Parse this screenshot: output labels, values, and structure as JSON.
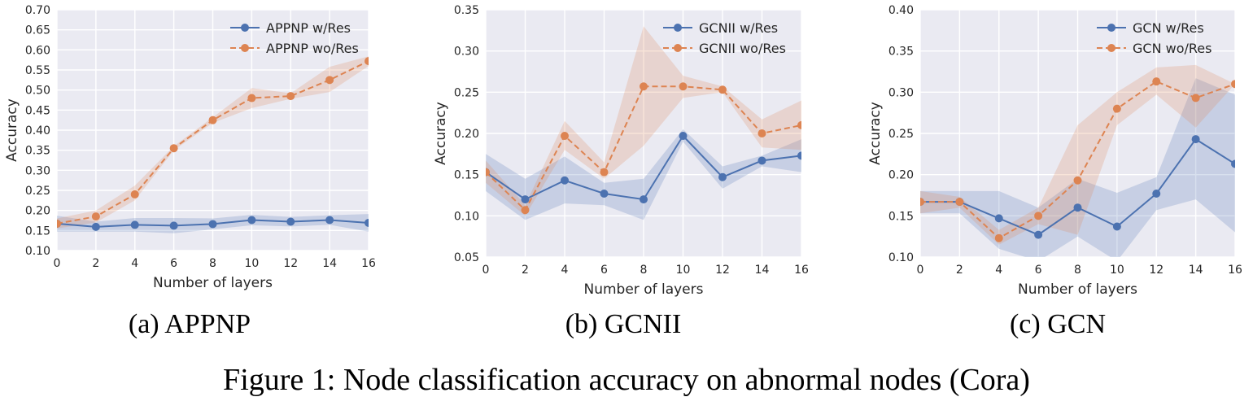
{
  "figure_caption": "Figure 1: Node classification accuracy on abnormal nodes (Cora)",
  "colors": {
    "res": "#4c72b0",
    "wores": "#dd8452",
    "plot_bg": "#eaeaf2",
    "grid": "#ffffff"
  },
  "chart_data": [
    {
      "type": "line",
      "subcaption": "(a) APPNP",
      "xlabel": "Number of layers",
      "ylabel": "Accuracy",
      "x": [
        0,
        2,
        4,
        6,
        8,
        10,
        12,
        14,
        16
      ],
      "xticks": [
        "0",
        "2",
        "4",
        "6",
        "8",
        "10",
        "12",
        "14",
        "16"
      ],
      "xlim": [
        0,
        16
      ],
      "ylim": [
        0.1,
        0.7
      ],
      "yticks": [
        "0.10",
        "0.15",
        "0.20",
        "0.25",
        "0.30",
        "0.35",
        "0.40",
        "0.45",
        "0.50",
        "0.55",
        "0.60",
        "0.65",
        "0.70"
      ],
      "legend_position": "top-right",
      "grid": true,
      "series": [
        {
          "name": "APPNP w/Res",
          "style": "solid",
          "color": "#4c72b0",
          "values": [
            0.167,
            0.159,
            0.164,
            0.162,
            0.166,
            0.176,
            0.172,
            0.176,
            0.169
          ],
          "lower": [
            0.147,
            0.147,
            0.147,
            0.143,
            0.153,
            0.163,
            0.16,
            0.164,
            0.147
          ],
          "upper": [
            0.187,
            0.172,
            0.181,
            0.181,
            0.18,
            0.189,
            0.184,
            0.188,
            0.191
          ]
        },
        {
          "name": "APPNP wo/Res",
          "style": "dashed",
          "color": "#dd8452",
          "values": [
            0.167,
            0.185,
            0.24,
            0.355,
            0.425,
            0.48,
            0.485,
            0.525,
            0.572
          ],
          "lower": [
            0.155,
            0.17,
            0.225,
            0.35,
            0.418,
            0.455,
            0.478,
            0.495,
            0.56
          ],
          "upper": [
            0.18,
            0.2,
            0.262,
            0.36,
            0.432,
            0.505,
            0.492,
            0.558,
            0.584
          ]
        }
      ]
    },
    {
      "type": "line",
      "subcaption": "(b) GCNII",
      "xlabel": "Number of layers",
      "ylabel": "Accuracy",
      "x": [
        0,
        2,
        4,
        6,
        8,
        10,
        12,
        14,
        16
      ],
      "xticks": [
        "0",
        "2",
        "4",
        "6",
        "8",
        "10",
        "12",
        "14",
        "16"
      ],
      "xlim": [
        0,
        16
      ],
      "ylim": [
        0.05,
        0.35
      ],
      "yticks": [
        "0.05",
        "0.10",
        "0.15",
        "0.20",
        "0.25",
        "0.30",
        "0.35"
      ],
      "legend_position": "top-right",
      "grid": true,
      "series": [
        {
          "name": "GCNII w/Res",
          "style": "solid",
          "color": "#4c72b0",
          "values": [
            0.153,
            0.12,
            0.143,
            0.127,
            0.12,
            0.197,
            0.147,
            0.167,
            0.173
          ],
          "lower": [
            0.13,
            0.095,
            0.115,
            0.113,
            0.095,
            0.19,
            0.133,
            0.16,
            0.153
          ],
          "upper": [
            0.175,
            0.145,
            0.172,
            0.14,
            0.145,
            0.205,
            0.16,
            0.173,
            0.193
          ]
        },
        {
          "name": "GCNII wo/Res",
          "style": "dashed",
          "color": "#dd8452",
          "values": [
            0.153,
            0.107,
            0.197,
            0.153,
            0.257,
            0.257,
            0.253,
            0.2,
            0.21
          ],
          "lower": [
            0.14,
            0.1,
            0.18,
            0.145,
            0.185,
            0.243,
            0.25,
            0.183,
            0.18
          ],
          "upper": [
            0.167,
            0.113,
            0.215,
            0.165,
            0.33,
            0.27,
            0.257,
            0.217,
            0.24
          ]
        }
      ]
    },
    {
      "type": "line",
      "subcaption": "(c) GCN",
      "xlabel": "Number of layers",
      "ylabel": "Accuracy",
      "x": [
        0,
        2,
        4,
        6,
        8,
        10,
        12,
        14,
        16
      ],
      "xticks": [
        "0",
        "2",
        "4",
        "6",
        "8",
        "10",
        "12",
        "14",
        "16"
      ],
      "xlim": [
        0,
        16
      ],
      "ylim": [
        0.1,
        0.4
      ],
      "yticks": [
        "0.10",
        "0.15",
        "0.20",
        "0.25",
        "0.30",
        "0.35",
        "0.40"
      ],
      "legend_position": "top-right",
      "grid": true,
      "series": [
        {
          "name": "GCN w/Res",
          "style": "solid",
          "color": "#4c72b0",
          "values": [
            0.167,
            0.167,
            0.147,
            0.127,
            0.16,
            0.137,
            0.177,
            0.243,
            0.213
          ],
          "lower": [
            0.153,
            0.153,
            0.11,
            0.095,
            0.125,
            0.095,
            0.157,
            0.17,
            0.13
          ],
          "upper": [
            0.18,
            0.18,
            0.18,
            0.16,
            0.195,
            0.178,
            0.197,
            0.317,
            0.297
          ]
        },
        {
          "name": "GCN wo/Res",
          "style": "dashed",
          "color": "#dd8452",
          "values": [
            0.167,
            0.167,
            0.123,
            0.15,
            0.193,
            0.28,
            0.313,
            0.293,
            0.31
          ],
          "lower": [
            0.153,
            0.16,
            0.115,
            0.14,
            0.127,
            0.26,
            0.297,
            0.257,
            0.31
          ],
          "upper": [
            0.18,
            0.173,
            0.133,
            0.16,
            0.26,
            0.3,
            0.33,
            0.333,
            0.31
          ]
        }
      ]
    }
  ]
}
